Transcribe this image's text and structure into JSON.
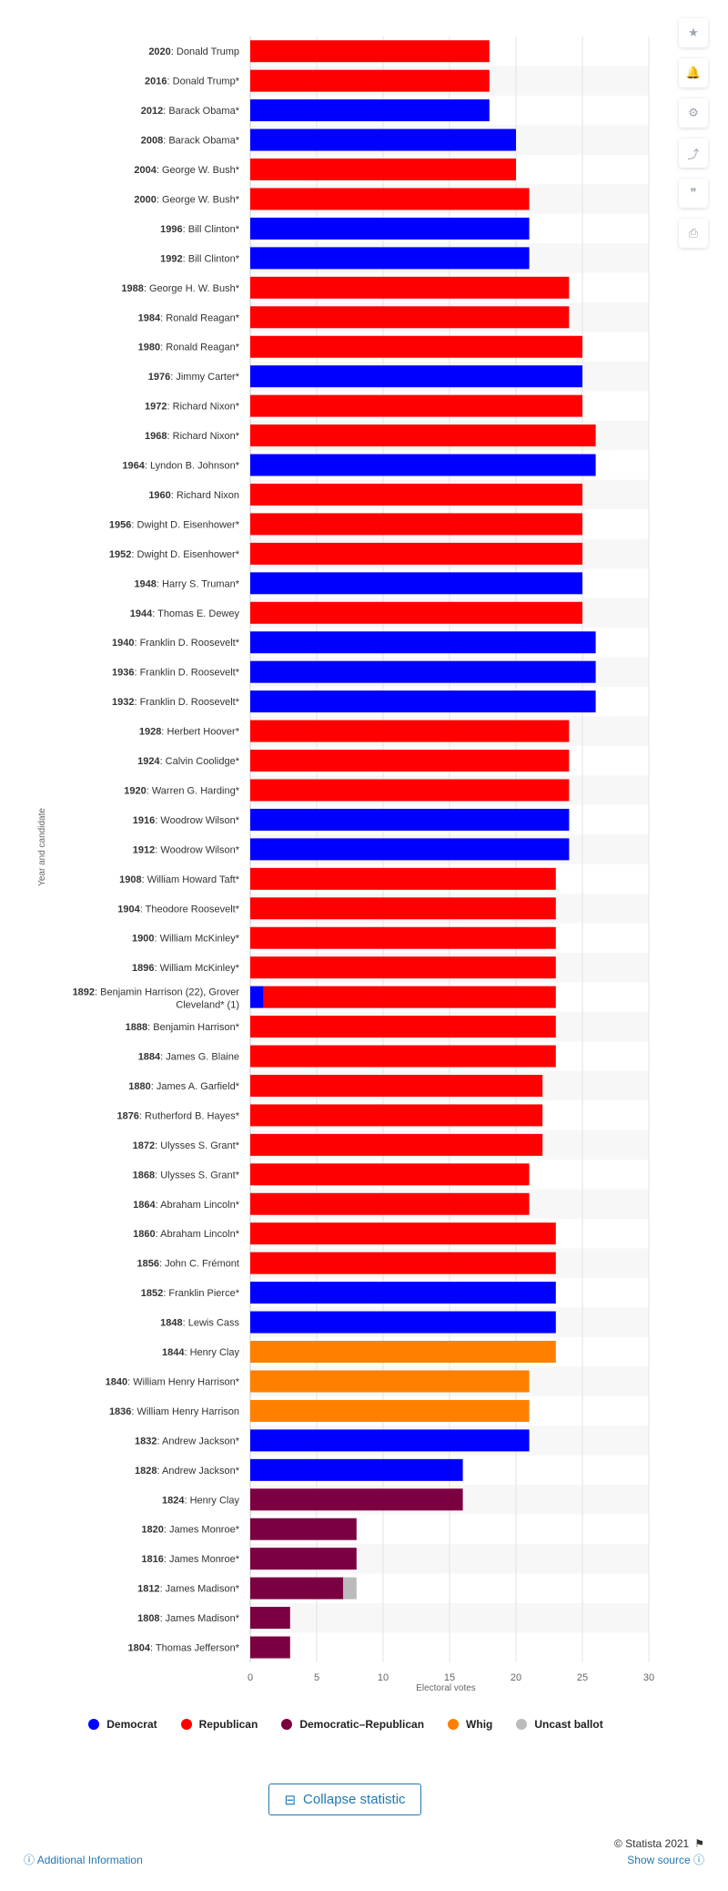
{
  "toolbar": {
    "buttons": [
      {
        "name": "favorite-star-icon",
        "glyph": "★"
      },
      {
        "name": "notification-bell-icon",
        "glyph": "🔔"
      },
      {
        "name": "settings-gear-icon",
        "glyph": "⚙"
      },
      {
        "name": "share-icon",
        "glyph": "⤴"
      },
      {
        "name": "quote-icon",
        "glyph": "❞"
      },
      {
        "name": "print-icon",
        "glyph": "⎙"
      }
    ]
  },
  "chart_data": {
    "type": "bar",
    "orientation": "horizontal",
    "stacked": true,
    "ylabel": "Year and candidate",
    "xlabel": "Electoral votes",
    "xlim": [
      0,
      30
    ],
    "xticks": [
      0,
      5,
      10,
      15,
      20,
      25,
      30
    ],
    "legend_position": "bottom",
    "colors": {
      "Democrat": "#0000ff",
      "Republican": "#ff0000",
      "Democratic-Republican": "#7b0041",
      "Whig": "#ff8000",
      "Uncast ballot": "#bbbbbb"
    },
    "categories": [
      {
        "year": "2020",
        "name": "Donald Trump",
        "segments": [
          {
            "party": "Republican",
            "value": 18
          }
        ]
      },
      {
        "year": "2016",
        "name": "Donald Trump*",
        "segments": [
          {
            "party": "Republican",
            "value": 18
          }
        ]
      },
      {
        "year": "2012",
        "name": "Barack Obama*",
        "segments": [
          {
            "party": "Democrat",
            "value": 18
          }
        ]
      },
      {
        "year": "2008",
        "name": "Barack Obama*",
        "segments": [
          {
            "party": "Democrat",
            "value": 20
          }
        ]
      },
      {
        "year": "2004",
        "name": "George W. Bush*",
        "segments": [
          {
            "party": "Republican",
            "value": 20
          }
        ]
      },
      {
        "year": "2000",
        "name": "George W. Bush*",
        "segments": [
          {
            "party": "Republican",
            "value": 21
          }
        ]
      },
      {
        "year": "1996",
        "name": "Bill Clinton*",
        "segments": [
          {
            "party": "Democrat",
            "value": 21
          }
        ]
      },
      {
        "year": "1992",
        "name": "Bill Clinton*",
        "segments": [
          {
            "party": "Democrat",
            "value": 21
          }
        ]
      },
      {
        "year": "1988",
        "name": "George H. W. Bush*",
        "segments": [
          {
            "party": "Republican",
            "value": 24
          }
        ]
      },
      {
        "year": "1984",
        "name": "Ronald Reagan*",
        "segments": [
          {
            "party": "Republican",
            "value": 24
          }
        ]
      },
      {
        "year": "1980",
        "name": "Ronald Reagan*",
        "segments": [
          {
            "party": "Republican",
            "value": 25
          }
        ]
      },
      {
        "year": "1976",
        "name": "Jimmy Carter*",
        "segments": [
          {
            "party": "Democrat",
            "value": 25
          }
        ]
      },
      {
        "year": "1972",
        "name": "Richard Nixon*",
        "segments": [
          {
            "party": "Republican",
            "value": 25
          }
        ]
      },
      {
        "year": "1968",
        "name": "Richard Nixon*",
        "segments": [
          {
            "party": "Republican",
            "value": 26
          }
        ]
      },
      {
        "year": "1964",
        "name": "Lyndon B. Johnson*",
        "segments": [
          {
            "party": "Democrat",
            "value": 26
          }
        ]
      },
      {
        "year": "1960",
        "name": "Richard Nixon",
        "segments": [
          {
            "party": "Republican",
            "value": 25
          }
        ]
      },
      {
        "year": "1956",
        "name": "Dwight D. Eisenhower*",
        "segments": [
          {
            "party": "Republican",
            "value": 25
          }
        ]
      },
      {
        "year": "1952",
        "name": "Dwight D. Eisenhower*",
        "segments": [
          {
            "party": "Republican",
            "value": 25
          }
        ]
      },
      {
        "year": "1948",
        "name": "Harry S. Truman*",
        "segments": [
          {
            "party": "Democrat",
            "value": 25
          }
        ]
      },
      {
        "year": "1944",
        "name": "Thomas E. Dewey",
        "segments": [
          {
            "party": "Republican",
            "value": 25
          }
        ]
      },
      {
        "year": "1940",
        "name": "Franklin D. Roosevelt*",
        "segments": [
          {
            "party": "Democrat",
            "value": 26
          }
        ]
      },
      {
        "year": "1936",
        "name": "Franklin D. Roosevelt*",
        "segments": [
          {
            "party": "Democrat",
            "value": 26
          }
        ]
      },
      {
        "year": "1932",
        "name": "Franklin D. Roosevelt*",
        "segments": [
          {
            "party": "Democrat",
            "value": 26
          }
        ]
      },
      {
        "year": "1928",
        "name": "Herbert Hoover*",
        "segments": [
          {
            "party": "Republican",
            "value": 24
          }
        ]
      },
      {
        "year": "1924",
        "name": "Calvin Coolidge*",
        "segments": [
          {
            "party": "Republican",
            "value": 24
          }
        ]
      },
      {
        "year": "1920",
        "name": "Warren G. Harding*",
        "segments": [
          {
            "party": "Republican",
            "value": 24
          }
        ]
      },
      {
        "year": "1916",
        "name": "Woodrow Wilson*",
        "segments": [
          {
            "party": "Democrat",
            "value": 24
          }
        ]
      },
      {
        "year": "1912",
        "name": "Woodrow Wilson*",
        "segments": [
          {
            "party": "Democrat",
            "value": 24
          }
        ]
      },
      {
        "year": "1908",
        "name": "William Howard Taft*",
        "segments": [
          {
            "party": "Republican",
            "value": 23
          }
        ]
      },
      {
        "year": "1904",
        "name": "Theodore Roosevelt*",
        "segments": [
          {
            "party": "Republican",
            "value": 23
          }
        ]
      },
      {
        "year": "1900",
        "name": "William McKinley*",
        "segments": [
          {
            "party": "Republican",
            "value": 23
          }
        ]
      },
      {
        "year": "1896",
        "name": "William McKinley*",
        "segments": [
          {
            "party": "Republican",
            "value": 23
          }
        ]
      },
      {
        "year": "1892",
        "name": "Benjamin Harrison (22), Grover",
        "name_line2": "Cleveland* (1)",
        "segments": [
          {
            "party": "Democrat",
            "value": 1
          },
          {
            "party": "Republican",
            "value": 22
          }
        ]
      },
      {
        "year": "1888",
        "name": "Benjamin Harrison*",
        "segments": [
          {
            "party": "Republican",
            "value": 23
          }
        ]
      },
      {
        "year": "1884",
        "name": "James G. Blaine",
        "segments": [
          {
            "party": "Republican",
            "value": 23
          }
        ]
      },
      {
        "year": "1880",
        "name": "James A. Garfield*",
        "segments": [
          {
            "party": "Republican",
            "value": 22
          }
        ]
      },
      {
        "year": "1876",
        "name": "Rutherford B. Hayes*",
        "segments": [
          {
            "party": "Republican",
            "value": 22
          }
        ]
      },
      {
        "year": "1872",
        "name": "Ulysses S. Grant*",
        "segments": [
          {
            "party": "Republican",
            "value": 22
          }
        ]
      },
      {
        "year": "1868",
        "name": "Ulysses S. Grant*",
        "segments": [
          {
            "party": "Republican",
            "value": 21
          }
        ]
      },
      {
        "year": "1864",
        "name": "Abraham Lincoln*",
        "segments": [
          {
            "party": "Republican",
            "value": 21
          }
        ]
      },
      {
        "year": "1860",
        "name": "Abraham Lincoln*",
        "segments": [
          {
            "party": "Republican",
            "value": 23
          }
        ]
      },
      {
        "year": "1856",
        "name": "John C. Frémont",
        "segments": [
          {
            "party": "Republican",
            "value": 23
          }
        ]
      },
      {
        "year": "1852",
        "name": "Franklin Pierce*",
        "segments": [
          {
            "party": "Democrat",
            "value": 23
          }
        ]
      },
      {
        "year": "1848",
        "name": "Lewis Cass",
        "segments": [
          {
            "party": "Democrat",
            "value": 23
          }
        ]
      },
      {
        "year": "1844",
        "name": "Henry Clay",
        "segments": [
          {
            "party": "Whig",
            "value": 23
          }
        ]
      },
      {
        "year": "1840",
        "name": "William Henry Harrison*",
        "segments": [
          {
            "party": "Whig",
            "value": 21
          }
        ]
      },
      {
        "year": "1836",
        "name": "William Henry Harrison",
        "segments": [
          {
            "party": "Whig",
            "value": 21
          }
        ]
      },
      {
        "year": "1832",
        "name": "Andrew Jackson*",
        "segments": [
          {
            "party": "Democrat",
            "value": 21
          }
        ]
      },
      {
        "year": "1828",
        "name": "Andrew Jackson*",
        "segments": [
          {
            "party": "Democrat",
            "value": 16
          }
        ]
      },
      {
        "year": "1824",
        "name": "Henry Clay",
        "segments": [
          {
            "party": "Democratic-Republican",
            "value": 16
          }
        ]
      },
      {
        "year": "1820",
        "name": "James Monroe*",
        "segments": [
          {
            "party": "Democratic-Republican",
            "value": 8
          }
        ]
      },
      {
        "year": "1816",
        "name": "James Monroe*",
        "segments": [
          {
            "party": "Democratic-Republican",
            "value": 8
          }
        ]
      },
      {
        "year": "1812",
        "name": "James Madison*",
        "segments": [
          {
            "party": "Democratic-Republican",
            "value": 7
          },
          {
            "party": "Uncast ballot",
            "value": 1
          }
        ]
      },
      {
        "year": "1808",
        "name": "James Madison*",
        "segments": [
          {
            "party": "Democratic-Republican",
            "value": 3
          }
        ]
      },
      {
        "year": "1804",
        "name": "Thomas Jefferson*",
        "segments": [
          {
            "party": "Democratic-Republican",
            "value": 3
          }
        ]
      }
    ]
  },
  "legend": {
    "items": [
      {
        "label": "Democrat",
        "color": "#0000ff"
      },
      {
        "label": "Republican",
        "color": "#ff0000"
      },
      {
        "label": "Democratic–Republican",
        "color": "#7b0041"
      },
      {
        "label": "Whig",
        "color": "#ff8000"
      },
      {
        "label": "Uncast ballot",
        "color": "#bbbbbb"
      }
    ]
  },
  "collapse": {
    "label": "Collapse statistic",
    "icon": "⊟"
  },
  "footer": {
    "copyright": "© Statista 2021",
    "additional_info": "Additional Information",
    "show_source": "Show source"
  }
}
